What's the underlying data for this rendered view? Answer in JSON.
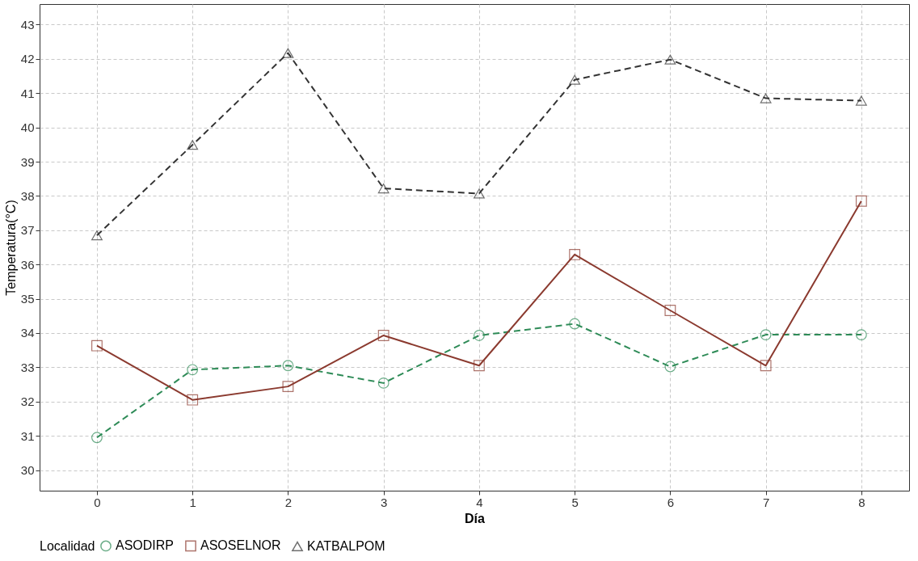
{
  "chart_data": {
    "type": "line",
    "xlabel": "Día",
    "ylabel": "Temperatura(°C)",
    "legend_title": "Localidad",
    "legend": "bottom",
    "grid": true,
    "x": [
      0,
      1,
      2,
      3,
      4,
      5,
      6,
      7,
      8
    ],
    "xlim": [
      -0.6,
      8.5
    ],
    "xticks": [
      0,
      1,
      2,
      3,
      4,
      5,
      6,
      7,
      8
    ],
    "ylim": [
      29.4,
      43.6
    ],
    "yticks": [
      30,
      31,
      32,
      33,
      34,
      35,
      36,
      37,
      38,
      39,
      40,
      41,
      42,
      43
    ],
    "series": [
      {
        "name": "ASODIRP",
        "color": "#2e8b57",
        "marker": "circle",
        "line_style": "dashed",
        "values": [
          30.95,
          32.93,
          33.05,
          32.54,
          33.93,
          34.27,
          33.02,
          33.95,
          33.95
        ]
      },
      {
        "name": "ASOSELNOR",
        "color": "#8b3a2f",
        "marker": "square",
        "line_style": "solid",
        "values": [
          33.63,
          32.05,
          32.44,
          33.93,
          33.05,
          36.29,
          34.66,
          33.05,
          37.85
        ]
      },
      {
        "name": "KATBALPOM",
        "color": "#333333",
        "marker": "triangle",
        "line_style": "dashed",
        "values": [
          36.85,
          39.49,
          42.17,
          38.22,
          38.07,
          41.39,
          41.98,
          40.85,
          40.78
        ]
      }
    ]
  }
}
